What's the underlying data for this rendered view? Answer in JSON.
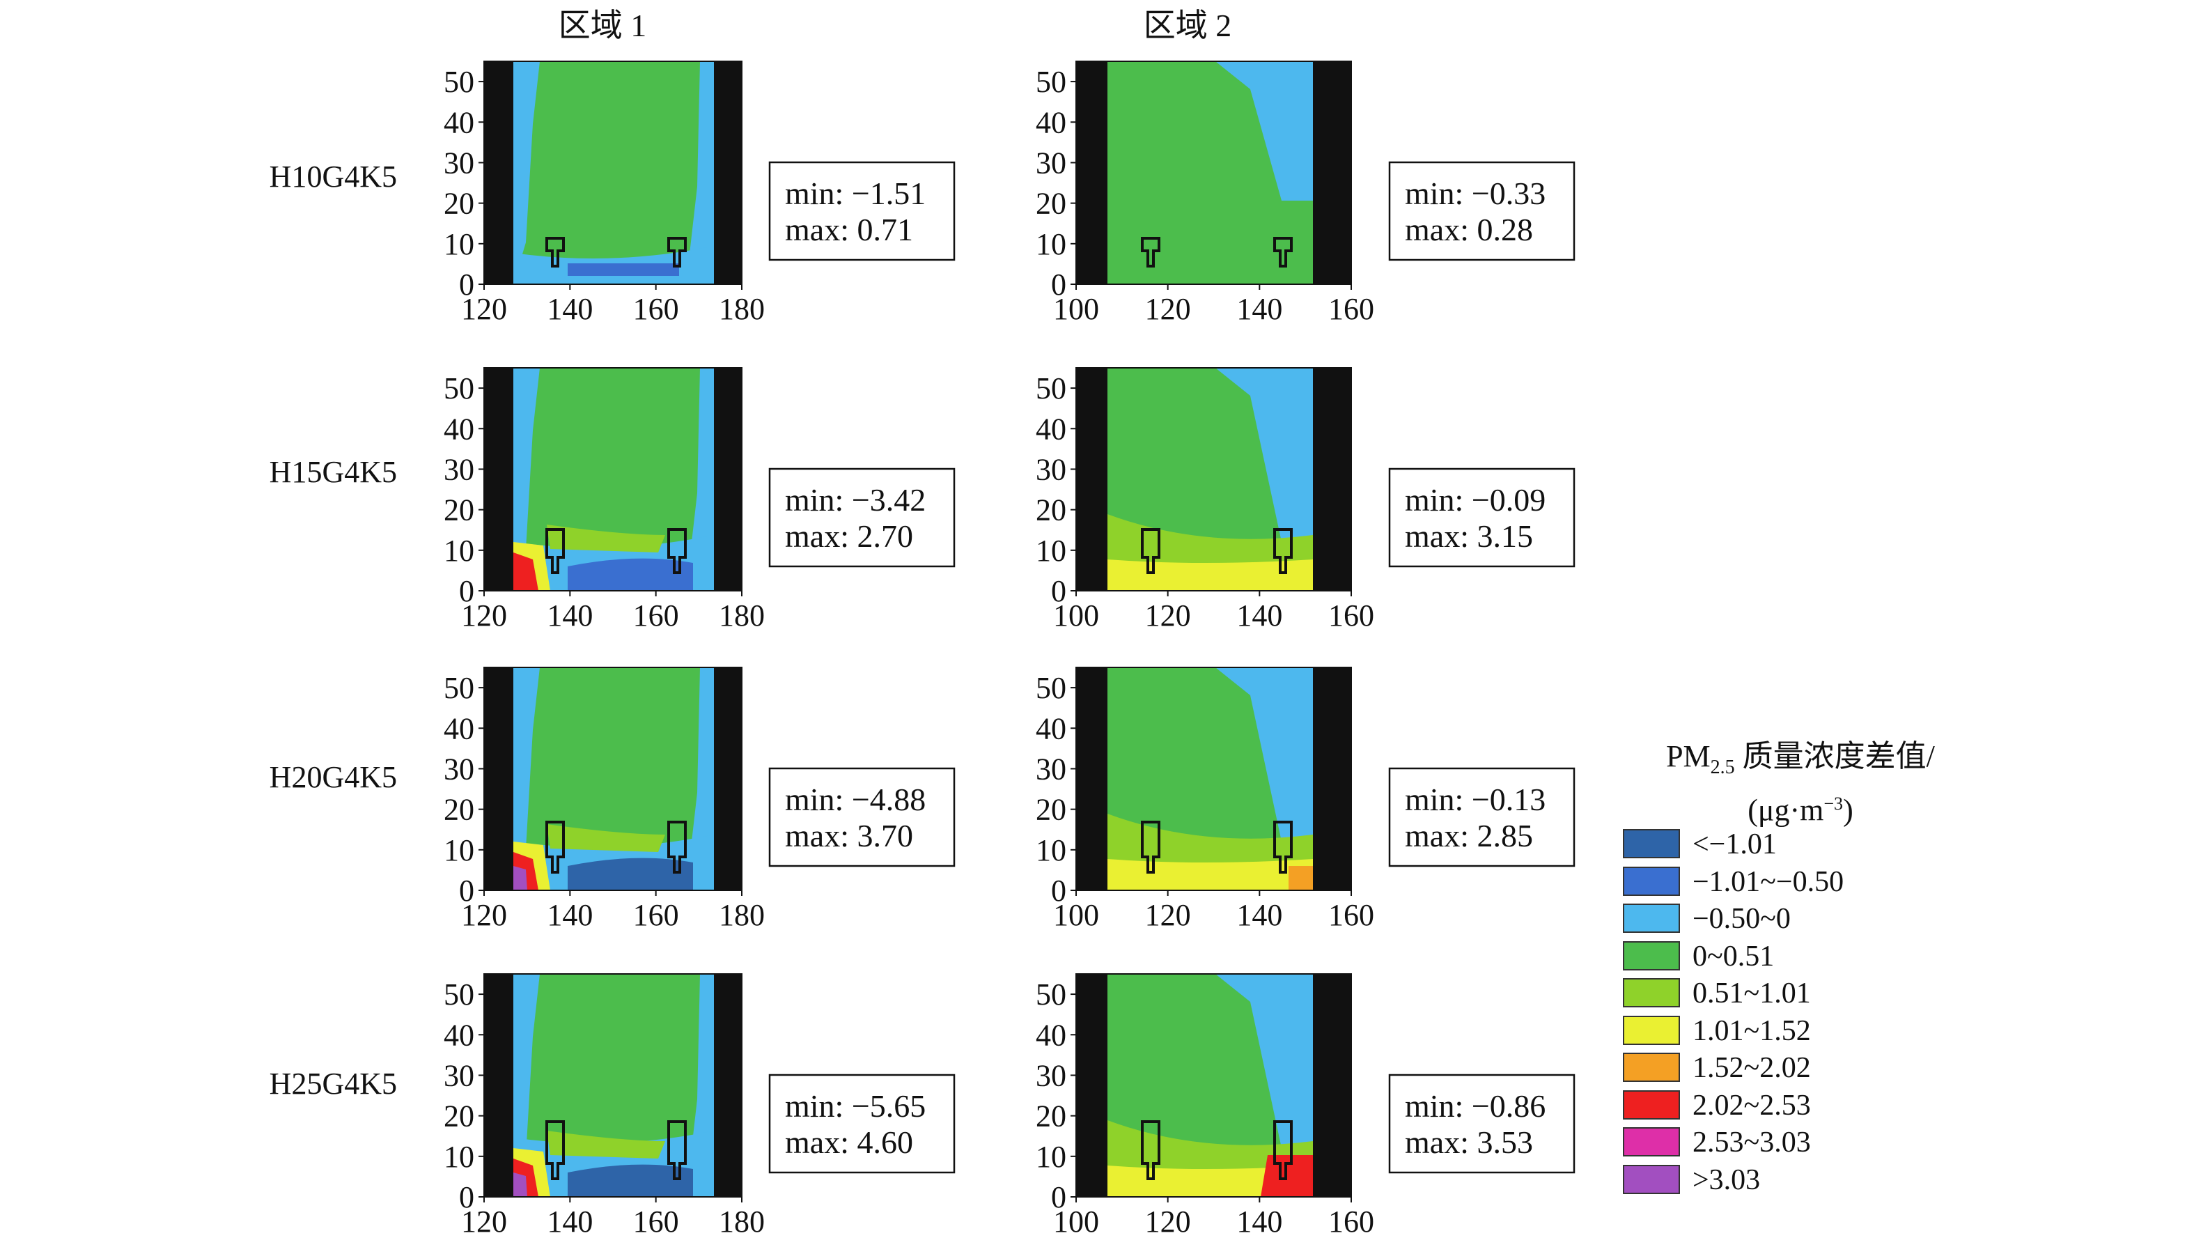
{
  "region_titles": [
    "区域 1",
    "区域 2"
  ],
  "row_labels": [
    "H10G4K5",
    "H15G4K5",
    "H20G4K5",
    "H25G4K5"
  ],
  "legend": {
    "title_main": "PM",
    "title_sub": "2.5",
    "title_rest": " 质量浓度差值/",
    "unit_prefix": "(μg·m",
    "unit_sup": "−3",
    "unit_suffix": ")",
    "items": [
      {
        "label": "<−1.01",
        "color": "#2e64a8"
      },
      {
        "label": "−1.01~−0.50",
        "color": "#3a6fd0"
      },
      {
        "label": "−0.50~0",
        "color": "#4db8ee"
      },
      {
        "label": "0~0.51",
        "color": "#4cbd4c"
      },
      {
        "label": "0.51~1.01",
        "color": "#8fd22a"
      },
      {
        "label": "1.01~1.52",
        "color": "#eaf032"
      },
      {
        "label": "1.52~2.02",
        "color": "#f4a024"
      },
      {
        "label": "2.02~2.53",
        "color": "#ee2020"
      },
      {
        "label": "2.53~3.03",
        "color": "#de2fa8"
      },
      {
        "label": ">3.03",
        "color": "#a24fc0"
      }
    ]
  },
  "chart_data": [
    {
      "type": "heatmap",
      "case": "H10G4K5",
      "region": "区域 1",
      "x_ticks": [
        "120",
        "140",
        "160",
        "180"
      ],
      "y_ticks": [
        "0",
        "10",
        "20",
        "30",
        "40",
        "50"
      ],
      "xlim": [
        120,
        180
      ],
      "ylim": [
        0,
        55
      ],
      "stats": {
        "min_label": "min: −1.51",
        "max_label": "max: 0.71",
        "min": -1.51,
        "max": 0.71
      }
    },
    {
      "type": "heatmap",
      "case": "H10G4K5",
      "region": "区域 2",
      "x_ticks": [
        "100",
        "120",
        "140",
        "160"
      ],
      "y_ticks": [
        "0",
        "10",
        "20",
        "30",
        "40",
        "50"
      ],
      "xlim": [
        100,
        160
      ],
      "ylim": [
        0,
        55
      ],
      "stats": {
        "min_label": "min: −0.33",
        "max_label": "max: 0.28",
        "min": -0.33,
        "max": 0.28
      }
    },
    {
      "type": "heatmap",
      "case": "H15G4K5",
      "region": "区域 1",
      "x_ticks": [
        "120",
        "140",
        "160",
        "180"
      ],
      "y_ticks": [
        "0",
        "10",
        "20",
        "30",
        "40",
        "50"
      ],
      "xlim": [
        120,
        180
      ],
      "ylim": [
        0,
        55
      ],
      "stats": {
        "min_label": "min: −3.42",
        "max_label": "max: 2.70",
        "min": -3.42,
        "max": 2.7
      }
    },
    {
      "type": "heatmap",
      "case": "H15G4K5",
      "region": "区域 2",
      "x_ticks": [
        "100",
        "120",
        "140",
        "160"
      ],
      "y_ticks": [
        "0",
        "10",
        "20",
        "30",
        "40",
        "50"
      ],
      "xlim": [
        100,
        160
      ],
      "ylim": [
        0,
        55
      ],
      "stats": {
        "min_label": "min: −0.09",
        "max_label": "max: 3.15",
        "min": -0.09,
        "max": 3.15
      }
    },
    {
      "type": "heatmap",
      "case": "H20G4K5",
      "region": "区域 1",
      "x_ticks": [
        "120",
        "140",
        "160",
        "180"
      ],
      "y_ticks": [
        "0",
        "10",
        "20",
        "30",
        "40",
        "50"
      ],
      "xlim": [
        120,
        180
      ],
      "ylim": [
        0,
        55
      ],
      "stats": {
        "min_label": "min: −4.88",
        "max_label": "max: 3.70",
        "min": -4.88,
        "max": 3.7
      }
    },
    {
      "type": "heatmap",
      "case": "H20G4K5",
      "region": "区域 2",
      "x_ticks": [
        "100",
        "120",
        "140",
        "160"
      ],
      "y_ticks": [
        "0",
        "10",
        "20",
        "30",
        "40",
        "50"
      ],
      "xlim": [
        100,
        160
      ],
      "ylim": [
        0,
        55
      ],
      "stats": {
        "min_label": "min: −0.13",
        "max_label": "max: 2.85",
        "min": -0.13,
        "max": 2.85
      }
    },
    {
      "type": "heatmap",
      "case": "H25G4K5",
      "region": "区域 1",
      "x_ticks": [
        "120",
        "140",
        "160",
        "180"
      ],
      "y_ticks": [
        "0",
        "10",
        "20",
        "30",
        "40",
        "50"
      ],
      "xlim": [
        120,
        180
      ],
      "ylim": [
        0,
        55
      ],
      "stats": {
        "min_label": "min: −5.65",
        "max_label": "max: 4.60",
        "min": -5.65,
        "max": 4.6
      }
    },
    {
      "type": "heatmap",
      "case": "H25G4K5",
      "region": "区域 2",
      "x_ticks": [
        "100",
        "120",
        "140",
        "160"
      ],
      "y_ticks": [
        "0",
        "10",
        "20",
        "30",
        "40",
        "50"
      ],
      "xlim": [
        100,
        160
      ],
      "ylim": [
        0,
        55
      ],
      "stats": {
        "min_label": "min: −0.86",
        "max_label": "max: 3.53",
        "min": -0.86,
        "max": 3.53
      }
    }
  ]
}
